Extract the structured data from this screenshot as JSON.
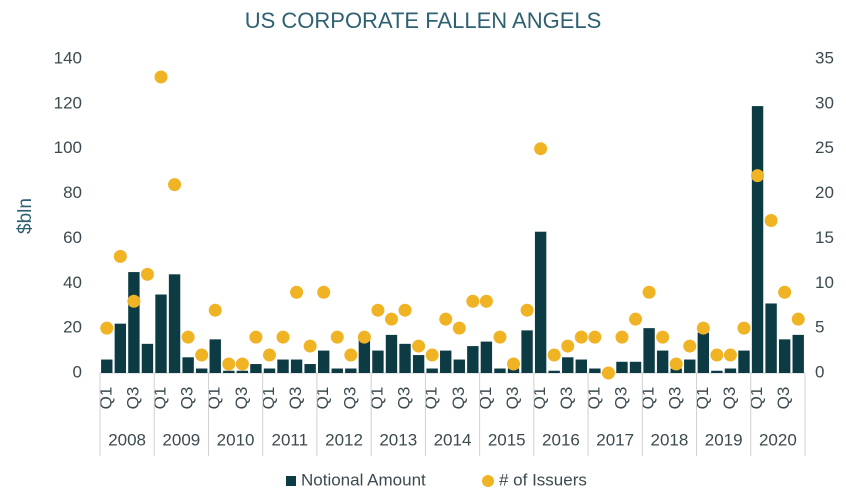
{
  "chart_data": {
    "type": "bar+scatter",
    "title": "US CORPORATE  FALLEN ANGELS",
    "y_label": "$bln",
    "categories": [
      "Q1",
      null,
      "Q3",
      null,
      "Q1",
      null,
      "Q3",
      null,
      "Q1",
      null,
      "Q3",
      null,
      "Q1",
      null,
      "Q3",
      null,
      "Q1",
      null,
      "Q3",
      null,
      "Q1",
      null,
      "Q3",
      null,
      "Q1",
      null,
      "Q3",
      null,
      "Q1",
      null,
      "Q3",
      null,
      "Q1",
      null,
      "Q3",
      null,
      "Q1",
      null,
      "Q3",
      null,
      "Q1",
      null,
      "Q3",
      null,
      "Q1",
      null,
      "Q3",
      null,
      "Q1",
      null,
      "Q3",
      null
    ],
    "groups": [
      "2008",
      "2009",
      "2010",
      "2011",
      "2012",
      "2013",
      "2014",
      "2015",
      "2016",
      "2017",
      "2018",
      "2019",
      "2020"
    ],
    "series": [
      {
        "name": "Notional Amount",
        "type": "bar",
        "color": "#0d3b44",
        "values": [
          6,
          22,
          45,
          13,
          35,
          44,
          7,
          2,
          15,
          1,
          1,
          4,
          2,
          6,
          6,
          4,
          10,
          2,
          2,
          15,
          10,
          17,
          13,
          8,
          2,
          10,
          6,
          12,
          14,
          2,
          2,
          19,
          63,
          1,
          7,
          6,
          2,
          1,
          5,
          5,
          20,
          10,
          2,
          6,
          18,
          1,
          2,
          10,
          119,
          31,
          15,
          17
        ]
      },
      {
        "name": "# of Issuers",
        "type": "scatter",
        "axis": "y2",
        "color": "#f0b323",
        "values": [
          5,
          13,
          8,
          11,
          33,
          21,
          4,
          2,
          7,
          1,
          1,
          4,
          2,
          4,
          9,
          3,
          9,
          4,
          2,
          4,
          7,
          6,
          7,
          3,
          2,
          6,
          5,
          8,
          8,
          4,
          1,
          7,
          25,
          2,
          3,
          4,
          4,
          0,
          4,
          6,
          9,
          4,
          1,
          3,
          5,
          2,
          2,
          5,
          22,
          17,
          9,
          6
        ]
      }
    ],
    "ylim": [
      0,
      140
    ],
    "yticks": [
      0,
      20,
      40,
      60,
      80,
      100,
      120,
      140
    ],
    "y2lim": [
      0,
      35
    ],
    "y2ticks": [
      0,
      5,
      10,
      15,
      20,
      25,
      30,
      35
    ],
    "legend": "bottom"
  }
}
